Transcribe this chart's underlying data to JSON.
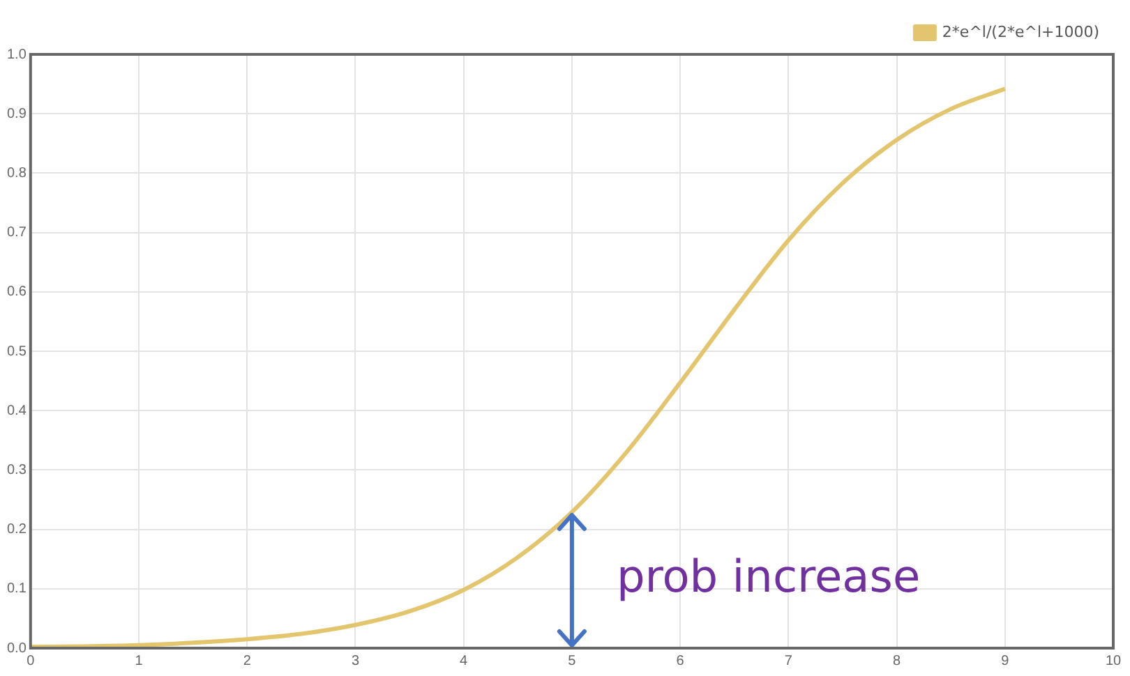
{
  "chart_data": {
    "type": "line",
    "x": [
      0,
      0.5,
      1,
      1.5,
      2,
      2.5,
      3,
      3.5,
      4,
      4.5,
      5,
      5.5,
      6,
      6.5,
      7,
      7.5,
      8,
      8.5,
      9
    ],
    "series": [
      {
        "name": "2*e^l/(2*e^l+1000)",
        "color": "#e3c56e",
        "values": [
          0.002,
          0.003,
          0.005,
          0.009,
          0.015,
          0.024,
          0.039,
          0.062,
          0.098,
          0.153,
          0.229,
          0.329,
          0.447,
          0.57,
          0.687,
          0.783,
          0.856,
          0.908,
          0.942
        ]
      }
    ],
    "xlim": [
      0,
      10
    ],
    "xticks": [
      0,
      1,
      2,
      3,
      4,
      5,
      6,
      7,
      8,
      9,
      10
    ],
    "ylim": [
      0,
      1
    ],
    "yticks": [
      {
        "value": 0,
        "label": "0.0"
      },
      0.1,
      0.2,
      0.3,
      0.4,
      0.5,
      0.6,
      0.7,
      0.8,
      0.9,
      {
        "value": 1,
        "label": "1.0"
      }
    ],
    "grid": true,
    "legend": "top right",
    "marker": "none",
    "line_style": "solid",
    "annotations": [
      {
        "text": "prob increase",
        "x": 5,
        "y": 0.229
      }
    ]
  }
}
